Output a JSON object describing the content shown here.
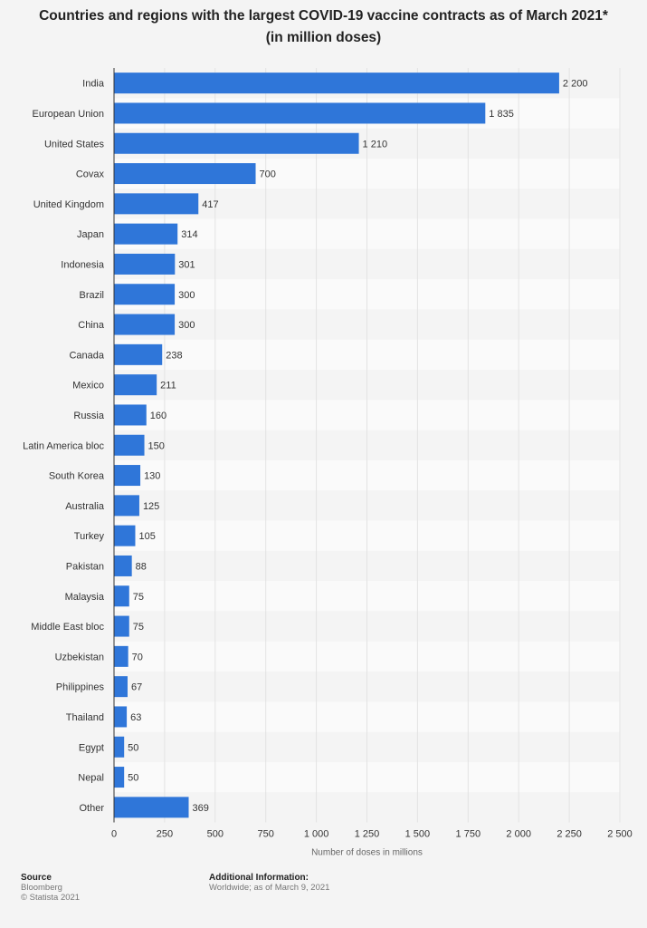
{
  "title_line1": "Countries and regions with the largest COVID-19 vaccine contracts as of March 2021*",
  "title_line2": "(in million doses)",
  "chart_data": {
    "type": "bar",
    "orientation": "horizontal",
    "categories": [
      "India",
      "European Union",
      "United States",
      "Covax",
      "United Kingdom",
      "Japan",
      "Indonesia",
      "Brazil",
      "China",
      "Canada",
      "Mexico",
      "Russia",
      "Latin America bloc",
      "South Korea",
      "Australia",
      "Turkey",
      "Pakistan",
      "Malaysia",
      "Middle East bloc",
      "Uzbekistan",
      "Philippines",
      "Thailand",
      "Egypt",
      "Nepal",
      "Other"
    ],
    "values": [
      2200,
      1835,
      1210,
      700,
      417,
      314,
      301,
      300,
      300,
      238,
      211,
      160,
      150,
      130,
      125,
      105,
      88,
      75,
      75,
      70,
      67,
      63,
      50,
      50,
      369
    ],
    "value_labels": [
      "2 200",
      "1 835",
      "1 210",
      "700",
      "417",
      "314",
      "301",
      "300",
      "300",
      "238",
      "211",
      "160",
      "150",
      "130",
      "125",
      "105",
      "88",
      "75",
      "75",
      "70",
      "67",
      "63",
      "50",
      "50",
      "369"
    ],
    "xlabel": "Number of doses in millions",
    "xlim": [
      0,
      2500
    ],
    "xticks": [
      0,
      250,
      500,
      750,
      1000,
      1250,
      1500,
      1750,
      2000,
      2250,
      2500
    ],
    "xtick_labels": [
      "0",
      "250",
      "500",
      "750",
      "1 000",
      "1 250",
      "1 500",
      "1 750",
      "2 000",
      "2 250",
      "2 500"
    ],
    "grid": true,
    "bar_color": "#2f76d9"
  },
  "footer": {
    "source_heading": "Source",
    "source_name": "Bloomberg",
    "copyright": "© Statista 2021",
    "info_heading": "Additional Information:",
    "info_text": "Worldwide; as of March 9, 2021"
  }
}
